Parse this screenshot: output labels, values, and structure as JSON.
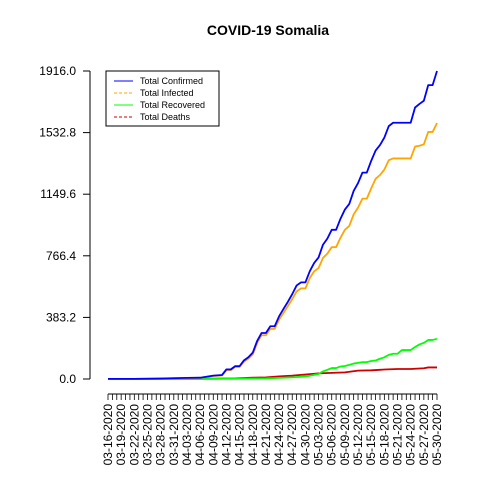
{
  "chart_data": {
    "type": "line",
    "title": "COVID-19 Somalia",
    "xlabel": "",
    "ylabel": "",
    "ylim": [
      0,
      1916
    ],
    "yticks": [
      "0.0",
      "383.2",
      "766.4",
      "1149.6",
      "1532.8",
      "1916.0"
    ],
    "ytick_values": [
      0,
      383.2,
      766.4,
      1149.6,
      1532.8,
      1916.0
    ],
    "x_start": "03-16-2020",
    "x_end": "05-30-2020",
    "x_tick_labels": [
      "03-16-2020",
      "03-19-2020",
      "03-22-2020",
      "03-25-2020",
      "03-28-2020",
      "03-31-2020",
      "04-03-2020",
      "04-06-2020",
      "04-09-2020",
      "04-12-2020",
      "04-15-2020",
      "04-18-2020",
      "04-21-2020",
      "04-24-2020",
      "04-27-2020",
      "04-30-2020",
      "05-03-2020",
      "05-06-2020",
      "05-09-2020",
      "05-12-2020",
      "05-15-2020",
      "05-18-2020",
      "05-21-2020",
      "05-24-2020",
      "05-27-2020",
      "05-30-2020"
    ],
    "legend_position": "top-left",
    "grid": false,
    "series": [
      {
        "name": "Total Confirmed",
        "color": "#0000ff",
        "line": "solid",
        "points": [
          [
            "03-16-2020",
            1
          ],
          [
            "03-22-2020",
            1
          ],
          [
            "03-28-2020",
            3
          ],
          [
            "04-03-2020",
            7
          ],
          [
            "04-06-2020",
            8
          ],
          [
            "04-09-2020",
            21
          ],
          [
            "04-11-2020",
            25
          ],
          [
            "04-12-2020",
            60
          ],
          [
            "04-13-2020",
            60
          ],
          [
            "04-14-2020",
            80
          ],
          [
            "04-15-2020",
            80
          ],
          [
            "04-16-2020",
            116
          ],
          [
            "04-17-2020",
            135
          ],
          [
            "04-18-2020",
            164
          ],
          [
            "04-19-2020",
            237
          ],
          [
            "04-20-2020",
            286
          ],
          [
            "04-21-2020",
            286
          ],
          [
            "04-22-2020",
            328
          ],
          [
            "04-23-2020",
            328
          ],
          [
            "04-24-2020",
            390
          ],
          [
            "04-25-2020",
            436
          ],
          [
            "04-26-2020",
            480
          ],
          [
            "04-27-2020",
            528
          ],
          [
            "04-28-2020",
            582
          ],
          [
            "04-29-2020",
            601
          ],
          [
            "04-30-2020",
            601
          ],
          [
            "05-01-2020",
            671
          ],
          [
            "05-02-2020",
            722
          ],
          [
            "05-03-2020",
            756
          ],
          [
            "05-04-2020",
            835
          ],
          [
            "05-05-2020",
            873
          ],
          [
            "05-06-2020",
            928
          ],
          [
            "05-07-2020",
            928
          ],
          [
            "05-08-2020",
            997
          ],
          [
            "05-09-2020",
            1054
          ],
          [
            "05-10-2020",
            1089
          ],
          [
            "05-11-2020",
            1170
          ],
          [
            "05-12-2020",
            1219
          ],
          [
            "05-13-2020",
            1284
          ],
          [
            "05-14-2020",
            1284
          ],
          [
            "05-15-2020",
            1357
          ],
          [
            "05-16-2020",
            1421
          ],
          [
            "05-17-2020",
            1455
          ],
          [
            "05-18-2020",
            1502
          ],
          [
            "05-19-2020",
            1573
          ],
          [
            "05-20-2020",
            1594
          ],
          [
            "05-21-2020",
            1594
          ],
          [
            "05-22-2020",
            1594
          ],
          [
            "05-23-2020",
            1594
          ],
          [
            "05-24-2020",
            1594
          ],
          [
            "05-25-2020",
            1689
          ],
          [
            "05-26-2020",
            1711
          ],
          [
            "05-27-2020",
            1731
          ],
          [
            "05-28-2020",
            1828
          ],
          [
            "05-29-2020",
            1828
          ],
          [
            "05-30-2020",
            1916
          ]
        ]
      },
      {
        "name": "Total Infected",
        "color": "#ffa500",
        "line": "dashed",
        "points": [
          [
            "03-16-2020",
            1
          ],
          [
            "03-22-2020",
            1
          ],
          [
            "03-28-2020",
            3
          ],
          [
            "04-03-2020",
            6
          ],
          [
            "04-06-2020",
            7
          ],
          [
            "04-09-2020",
            19
          ],
          [
            "04-11-2020",
            22
          ],
          [
            "04-12-2020",
            55
          ],
          [
            "04-13-2020",
            55
          ],
          [
            "04-14-2020",
            75
          ],
          [
            "04-15-2020",
            75
          ],
          [
            "04-16-2020",
            108
          ],
          [
            "04-17-2020",
            127
          ],
          [
            "04-18-2020",
            153
          ],
          [
            "04-19-2020",
            224
          ],
          [
            "04-20-2020",
            272
          ],
          [
            "04-21-2020",
            272
          ],
          [
            "04-22-2020",
            312
          ],
          [
            "04-23-2020",
            312
          ],
          [
            "04-24-2020",
            369
          ],
          [
            "04-25-2020",
            411
          ],
          [
            "04-26-2020",
            453
          ],
          [
            "04-27-2020",
            497
          ],
          [
            "04-28-2020",
            545
          ],
          [
            "04-29-2020",
            564
          ],
          [
            "04-30-2020",
            564
          ],
          [
            "05-01-2020",
            628
          ],
          [
            "05-02-2020",
            670
          ],
          [
            "05-03-2020",
            690
          ],
          [
            "05-04-2020",
            753
          ],
          [
            "05-05-2020",
            780
          ],
          [
            "05-06-2020",
            820
          ],
          [
            "05-07-2020",
            820
          ],
          [
            "05-08-2020",
            879
          ],
          [
            "05-09-2020",
            928
          ],
          [
            "05-10-2020",
            952
          ],
          [
            "05-11-2020",
            1024
          ],
          [
            "05-12-2020",
            1066
          ],
          [
            "05-13-2020",
            1122
          ],
          [
            "05-14-2020",
            1122
          ],
          [
            "05-15-2020",
            1186
          ],
          [
            "05-16-2020",
            1245
          ],
          [
            "05-17-2020",
            1269
          ],
          [
            "05-18-2020",
            1303
          ],
          [
            "05-19-2020",
            1361
          ],
          [
            "05-20-2020",
            1372
          ],
          [
            "05-21-2020",
            1372
          ],
          [
            "05-22-2020",
            1372
          ],
          [
            "05-23-2020",
            1372
          ],
          [
            "05-24-2020",
            1372
          ],
          [
            "05-25-2020",
            1446
          ],
          [
            "05-26-2020",
            1451
          ],
          [
            "05-27-2020",
            1460
          ],
          [
            "05-28-2020",
            1537
          ],
          [
            "05-29-2020",
            1537
          ],
          [
            "05-30-2020",
            1592
          ]
        ]
      },
      {
        "name": "Total Recovered",
        "color": "#00ff00",
        "line": "solid",
        "points": [
          [
            "03-16-2020",
            0
          ],
          [
            "04-03-2020",
            0
          ],
          [
            "04-09-2020",
            1
          ],
          [
            "04-14-2020",
            2
          ],
          [
            "04-18-2020",
            3
          ],
          [
            "04-21-2020",
            4
          ],
          [
            "04-24-2020",
            7
          ],
          [
            "04-27-2020",
            10
          ],
          [
            "04-30-2020",
            16
          ],
          [
            "05-01-2020",
            20
          ],
          [
            "05-02-2020",
            26
          ],
          [
            "05-03-2020",
            31
          ],
          [
            "05-04-2020",
            47
          ],
          [
            "05-05-2020",
            57
          ],
          [
            "05-06-2020",
            68
          ],
          [
            "05-07-2020",
            68
          ],
          [
            "05-08-2020",
            78
          ],
          [
            "05-09-2020",
            81
          ],
          [
            "05-10-2020",
            88
          ],
          [
            "05-11-2020",
            96
          ],
          [
            "05-12-2020",
            100
          ],
          [
            "05-13-2020",
            105
          ],
          [
            "05-14-2020",
            105
          ],
          [
            "05-15-2020",
            112
          ],
          [
            "05-16-2020",
            115
          ],
          [
            "05-17-2020",
            126
          ],
          [
            "05-18-2020",
            135
          ],
          [
            "05-19-2020",
            150
          ],
          [
            "05-20-2020",
            157
          ],
          [
            "05-21-2020",
            157
          ],
          [
            "05-22-2020",
            180
          ],
          [
            "05-23-2020",
            180
          ],
          [
            "05-24-2020",
            180
          ],
          [
            "05-25-2020",
            199
          ],
          [
            "05-26-2020",
            215
          ],
          [
            "05-27-2020",
            225
          ],
          [
            "05-28-2020",
            243
          ],
          [
            "05-29-2020",
            243
          ],
          [
            "05-30-2020",
            250
          ]
        ]
      },
      {
        "name": "Total Deaths",
        "color": "#cc0000",
        "line": "dashed",
        "points": [
          [
            "03-16-2020",
            0
          ],
          [
            "04-03-2020",
            1
          ],
          [
            "04-09-2020",
            2
          ],
          [
            "04-14-2020",
            4
          ],
          [
            "04-18-2020",
            8
          ],
          [
            "04-21-2020",
            10
          ],
          [
            "04-24-2020",
            16
          ],
          [
            "04-27-2020",
            21
          ],
          [
            "04-30-2020",
            28
          ],
          [
            "05-03-2020",
            35
          ],
          [
            "05-06-2020",
            38
          ],
          [
            "05-09-2020",
            41
          ],
          [
            "05-12-2020",
            52
          ],
          [
            "05-15-2020",
            54
          ],
          [
            "05-18-2020",
            59
          ],
          [
            "05-21-2020",
            62
          ],
          [
            "05-24-2020",
            62
          ],
          [
            "05-27-2020",
            67
          ],
          [
            "05-28-2020",
            72
          ],
          [
            "05-30-2020",
            72
          ]
        ]
      }
    ]
  }
}
